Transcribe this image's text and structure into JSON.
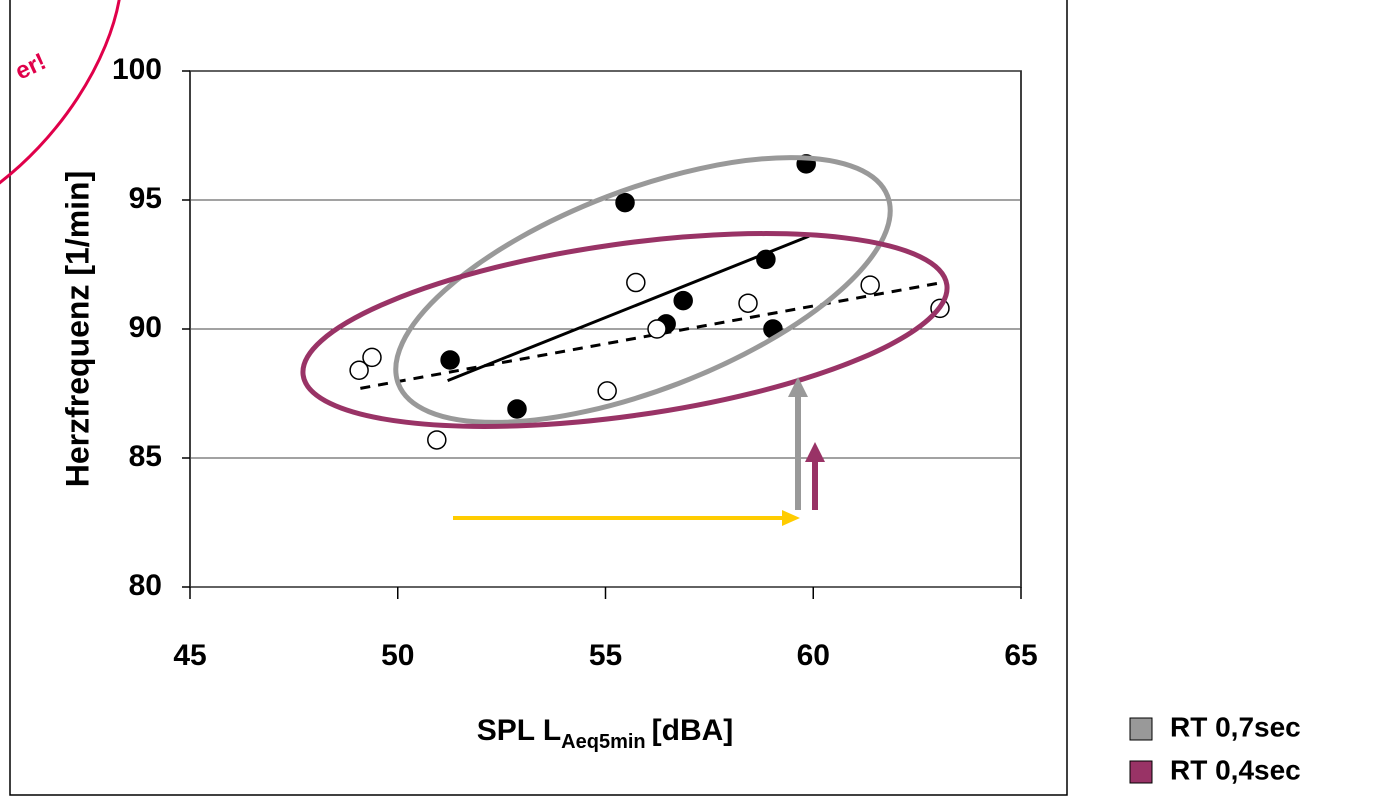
{
  "chart_data": {
    "type": "scatter",
    "stamp": "er!",
    "x_label": {
      "main": "SPL L",
      "sub": "Aeq5min",
      "unit": "[dBA]"
    },
    "y_label": "Herzfrequenz [1/min]",
    "xlim": [
      45,
      65
    ],
    "xticks": [
      45,
      50,
      55,
      60,
      65
    ],
    "ylim": [
      80,
      100
    ],
    "yticks": [
      80,
      85,
      90,
      95,
      100
    ],
    "grid": true,
    "series": [
      {
        "marker": "filled",
        "color": "#000000",
        "x": [
          51.26,
          52.87,
          55.47,
          56.46,
          56.87,
          58.86,
          59.03,
          59.83
        ],
        "values": [
          88.8,
          86.9,
          94.9,
          90.2,
          91.1,
          92.7,
          90.0,
          96.4
        ]
      },
      {
        "marker": "open",
        "color": "#000000",
        "x": [
          49.07,
          49.38,
          50.94,
          55.04,
          55.73,
          56.24,
          58.43,
          61.37,
          63.05
        ],
        "values": [
          88.4,
          88.9,
          85.7,
          87.6,
          91.8,
          90.0,
          91.0,
          91.7,
          90.8
        ]
      }
    ],
    "trendlines": [
      {
        "style": "solid",
        "x": [
          51.2,
          59.9
        ],
        "values": [
          88.0,
          93.6
        ]
      },
      {
        "style": "dashed",
        "x": [
          49.1,
          63.1
        ],
        "values": [
          87.7,
          91.8
        ]
      }
    ],
    "legend": [
      {
        "label": "RT 0,7sec",
        "color": "#999999"
      },
      {
        "label": "RT 0,4sec",
        "color": "#993366"
      }
    ]
  }
}
